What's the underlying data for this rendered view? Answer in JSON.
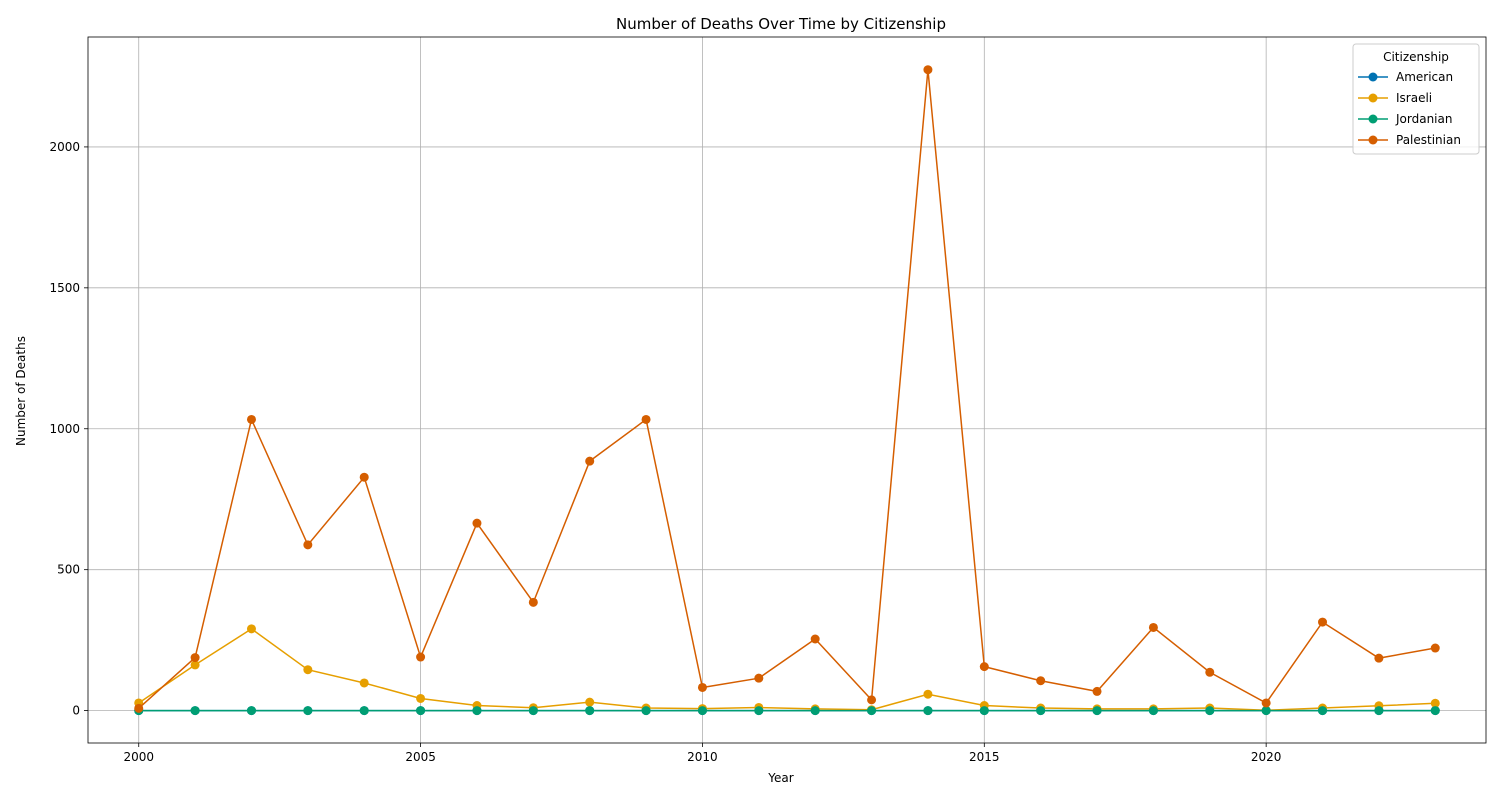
{
  "chart_data": {
    "type": "line",
    "title": "Number of Deaths Over Time by Citizenship",
    "xlabel": "Year",
    "ylabel": "Number of Deaths",
    "xlim": [
      1999.1,
      2023.9
    ],
    "ylim": [
      -115,
      2390
    ],
    "xticks": [
      2000,
      2005,
      2010,
      2015,
      2020
    ],
    "yticks": [
      0,
      500,
      1000,
      1500,
      2000
    ],
    "grid": true,
    "legend": {
      "title": "Citizenship",
      "position": "top-right"
    },
    "x": [
      2000,
      2001,
      2002,
      2003,
      2004,
      2005,
      2006,
      2007,
      2008,
      2009,
      2010,
      2011,
      2012,
      2013,
      2014,
      2015,
      2016,
      2017,
      2018,
      2019,
      2020,
      2021,
      2022,
      2023
    ],
    "series": [
      {
        "name": "American",
        "color": "#0072b2",
        "values": [
          0,
          0,
          0,
          0,
          0,
          0,
          0,
          0,
          0,
          0,
          0,
          0,
          0,
          0,
          0,
          0,
          0,
          0,
          0,
          0,
          0,
          0,
          0,
          0
        ]
      },
      {
        "name": "Israeli",
        "color": "#e69f00",
        "values": [
          27,
          162,
          290,
          145,
          98,
          43,
          18,
          10,
          30,
          9,
          7,
          11,
          6,
          3,
          58,
          18,
          9,
          6,
          6,
          9,
          1,
          9,
          17,
          26
        ]
      },
      {
        "name": "Jordanian",
        "color": "#009e73",
        "values": [
          0,
          0,
          0,
          0,
          0,
          0,
          0,
          0,
          0,
          0,
          0,
          0,
          0,
          0,
          0,
          0,
          0,
          0,
          0,
          0,
          0,
          0,
          0,
          0
        ]
      },
      {
        "name": "Palestinian",
        "color": "#d55e00",
        "values": [
          8,
          188,
          1033,
          588,
          828,
          190,
          665,
          384,
          885,
          1033,
          82,
          115,
          254,
          38,
          2274,
          156,
          106,
          68,
          295,
          136,
          27,
          314,
          186,
          222
        ]
      }
    ]
  }
}
